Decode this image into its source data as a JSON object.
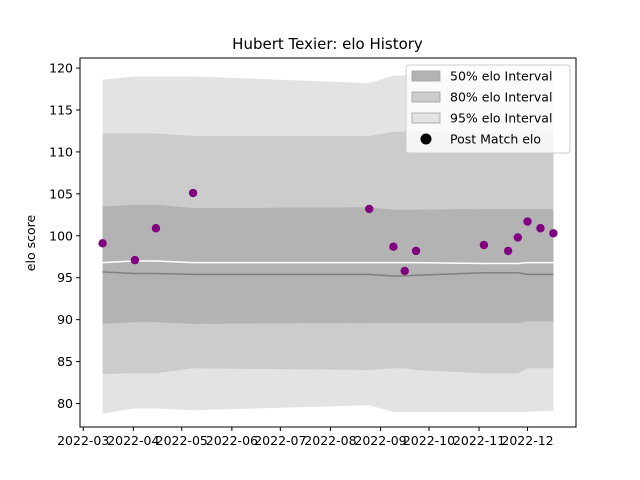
{
  "chart_data": {
    "type": "area",
    "title": "Hubert Texier: elo History",
    "xlabel": "",
    "ylabel": "elo score",
    "ylim": [
      77.2,
      121.2
    ],
    "yticks": [
      80,
      85,
      90,
      95,
      100,
      105,
      110,
      115,
      120
    ],
    "xlim": [
      "2022-02-27",
      "2022-12-31"
    ],
    "xticks": [
      "2022-03",
      "2022-04",
      "2022-05",
      "2022-06",
      "2022-07",
      "2022-08",
      "2022-09",
      "2022-10",
      "2022-11",
      "2022-12"
    ],
    "x": [
      "2022-03-13",
      "2022-04-02",
      "2022-04-15",
      "2022-05-08",
      "2022-08-25",
      "2022-09-09",
      "2022-09-16",
      "2022-09-23",
      "2022-11-04",
      "2022-11-19",
      "2022-11-25",
      "2022-12-01",
      "2022-12-09",
      "2022-12-17"
    ],
    "series": [
      {
        "name": "95% elo Interval",
        "kind": "band",
        "color": "#e3e3e3",
        "lower": [
          78.8,
          79.4,
          79.4,
          79.2,
          79.8,
          79.0,
          79.0,
          79.0,
          79.0,
          79.0,
          79.0,
          79.0,
          79.1,
          79.1
        ],
        "upper": [
          118.6,
          119.0,
          119.0,
          119.0,
          118.2,
          119.1,
          119.1,
          119.1,
          119.1,
          119.1,
          119.1,
          119.1,
          119.1,
          119.1
        ]
      },
      {
        "name": "80% elo Interval",
        "kind": "band",
        "color": "#cccccc",
        "lower": [
          83.5,
          83.6,
          83.6,
          84.2,
          84.0,
          84.2,
          84.2,
          84.0,
          83.6,
          83.6,
          83.6,
          84.2,
          84.2,
          84.2
        ],
        "upper": [
          112.2,
          112.2,
          112.2,
          111.9,
          111.9,
          112.4,
          112.4,
          112.4,
          112.3,
          112.3,
          112.3,
          112.5,
          112.5,
          112.5
        ]
      },
      {
        "name": "50% elo Interval",
        "kind": "band",
        "color": "#b3b3b3",
        "lower": [
          89.5,
          89.7,
          89.7,
          89.5,
          89.6,
          89.6,
          89.6,
          89.6,
          89.6,
          89.6,
          89.6,
          89.8,
          89.8,
          89.8
        ],
        "upper": [
          103.5,
          103.7,
          103.7,
          103.3,
          103.4,
          103.1,
          103.1,
          103.1,
          103.2,
          103.2,
          103.2,
          103.2,
          103.2,
          103.2
        ]
      },
      {
        "name": "",
        "kind": "line",
        "color": "#ffffff",
        "values": [
          96.8,
          97.0,
          97.0,
          96.8,
          96.8,
          96.8,
          96.8,
          96.8,
          96.7,
          96.7,
          96.7,
          96.8,
          96.8,
          96.8
        ]
      },
      {
        "name": "",
        "kind": "line",
        "color": "#808080",
        "values": [
          95.7,
          95.5,
          95.5,
          95.4,
          95.4,
          95.2,
          95.2,
          95.3,
          95.6,
          95.6,
          95.6,
          95.4,
          95.4,
          95.4
        ]
      },
      {
        "name": "Post Match elo",
        "kind": "scatter",
        "color": "#800080",
        "values": [
          99.1,
          97.1,
          100.9,
          105.1,
          103.2,
          98.7,
          95.8,
          98.2,
          98.9,
          98.2,
          99.8,
          101.7,
          100.9,
          100.3
        ]
      }
    ],
    "legend": {
      "position": "top-right",
      "entries": [
        "50% elo Interval",
        "80% elo Interval",
        "95% elo Interval",
        "Post Match elo"
      ]
    }
  }
}
